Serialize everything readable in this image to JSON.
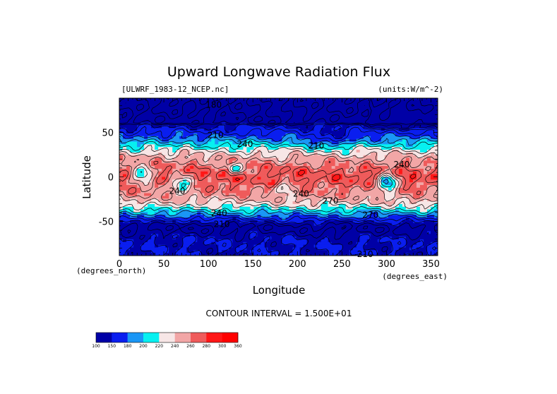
{
  "chart_data": {
    "type": "heatmap",
    "title": "Upward Longwave Radiation Flux",
    "dataset": "[ULWRF_1983-12_NCEP.nc]",
    "units": "(units:W/m^-2)",
    "xlabel": "Longitude",
    "ylabel": "Latitude",
    "x_unit": "(degrees_east)",
    "y_unit": "(degrees_north)",
    "xlim": [
      0,
      357.5
    ],
    "ylim": [
      -88.5,
      88.5
    ],
    "x_ticks": [
      0,
      50,
      100,
      150,
      200,
      250,
      300,
      350
    ],
    "y_ticks": [
      50,
      0,
      -50
    ],
    "contour_interval": "CONTOUR INTERVAL = 1.500E+01",
    "colorbar": {
      "levels": [
        100,
        150,
        180,
        200,
        220,
        240,
        260,
        280,
        300,
        360
      ],
      "level_labels": [
        "100",
        "150",
        "180",
        "200",
        "220",
        "240",
        "260",
        "280",
        "300",
        "360"
      ],
      "colors": [
        "#0000a6",
        "#0a1eef",
        "#1a96f5",
        "#07f0f0",
        "#f7e6e6",
        "#f2a6a6",
        "#ef5b5b",
        "#ff1717",
        "#ff0000"
      ]
    },
    "contour_labels": [
      {
        "text": "180",
        "lon": 106,
        "lat": 81
      },
      {
        "text": "210",
        "lon": 108,
        "lat": 47
      },
      {
        "text": "240",
        "lon": 141,
        "lat": 37
      },
      {
        "text": "210",
        "lon": 221,
        "lat": 35
      },
      {
        "text": "240",
        "lon": 317,
        "lat": 14
      },
      {
        "text": "240",
        "lon": 65,
        "lat": -16
      },
      {
        "text": "240",
        "lon": 204,
        "lat": -19
      },
      {
        "text": "270",
        "lon": 237,
        "lat": -27
      },
      {
        "text": "240",
        "lon": 112,
        "lat": -41
      },
      {
        "text": "270",
        "lon": 282,
        "lat": -43
      },
      {
        "text": "210",
        "lon": 115,
        "lat": -53
      },
      {
        "text": "210",
        "lon": 276,
        "lat": -87
      }
    ]
  }
}
